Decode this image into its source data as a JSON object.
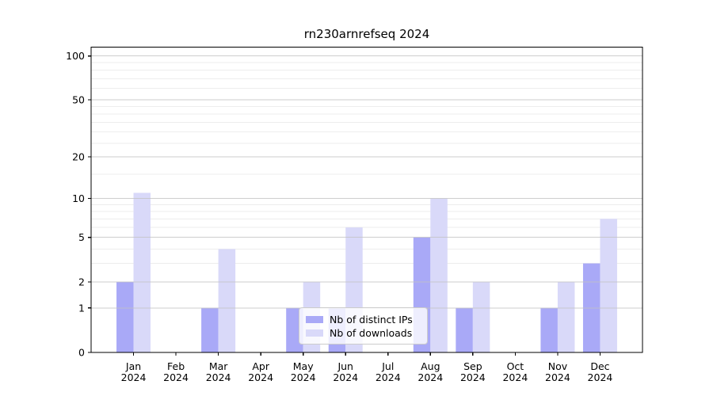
{
  "chart_data": {
    "type": "bar",
    "title": "rn230arnrefseq 2024",
    "categories": [
      "Jan",
      "Feb",
      "Mar",
      "Apr",
      "May",
      "Jun",
      "Jul",
      "Aug",
      "Sep",
      "Oct",
      "Nov",
      "Dec"
    ],
    "x_year_line": "2024",
    "series": [
      {
        "name": "Nb of distinct IPs",
        "color": "#a9a9f7",
        "values": [
          2,
          0,
          1,
          0,
          1,
          1,
          0,
          5,
          1,
          0,
          1,
          3
        ]
      },
      {
        "name": "Nb of downloads",
        "color": "#d9d9f9",
        "values": [
          11,
          0,
          4,
          0,
          2,
          6,
          0,
          10,
          2,
          0,
          2,
          7
        ]
      }
    ],
    "y_axis": {
      "scale": "log10(1+v)",
      "ticks": [
        0,
        1,
        2,
        5,
        10,
        20,
        50,
        100
      ],
      "minor_ticks": [
        3,
        4,
        6,
        7,
        8,
        9,
        15,
        25,
        30,
        35,
        40,
        45,
        60,
        70,
        80,
        90
      ],
      "top_value": 115
    },
    "grid": true,
    "legend_position": "lower-center",
    "colors": {
      "major_grid": "#c2c2c2",
      "minor_grid": "#ededed",
      "axis": "#000000",
      "text": "#000000",
      "background": "#ffffff"
    }
  }
}
